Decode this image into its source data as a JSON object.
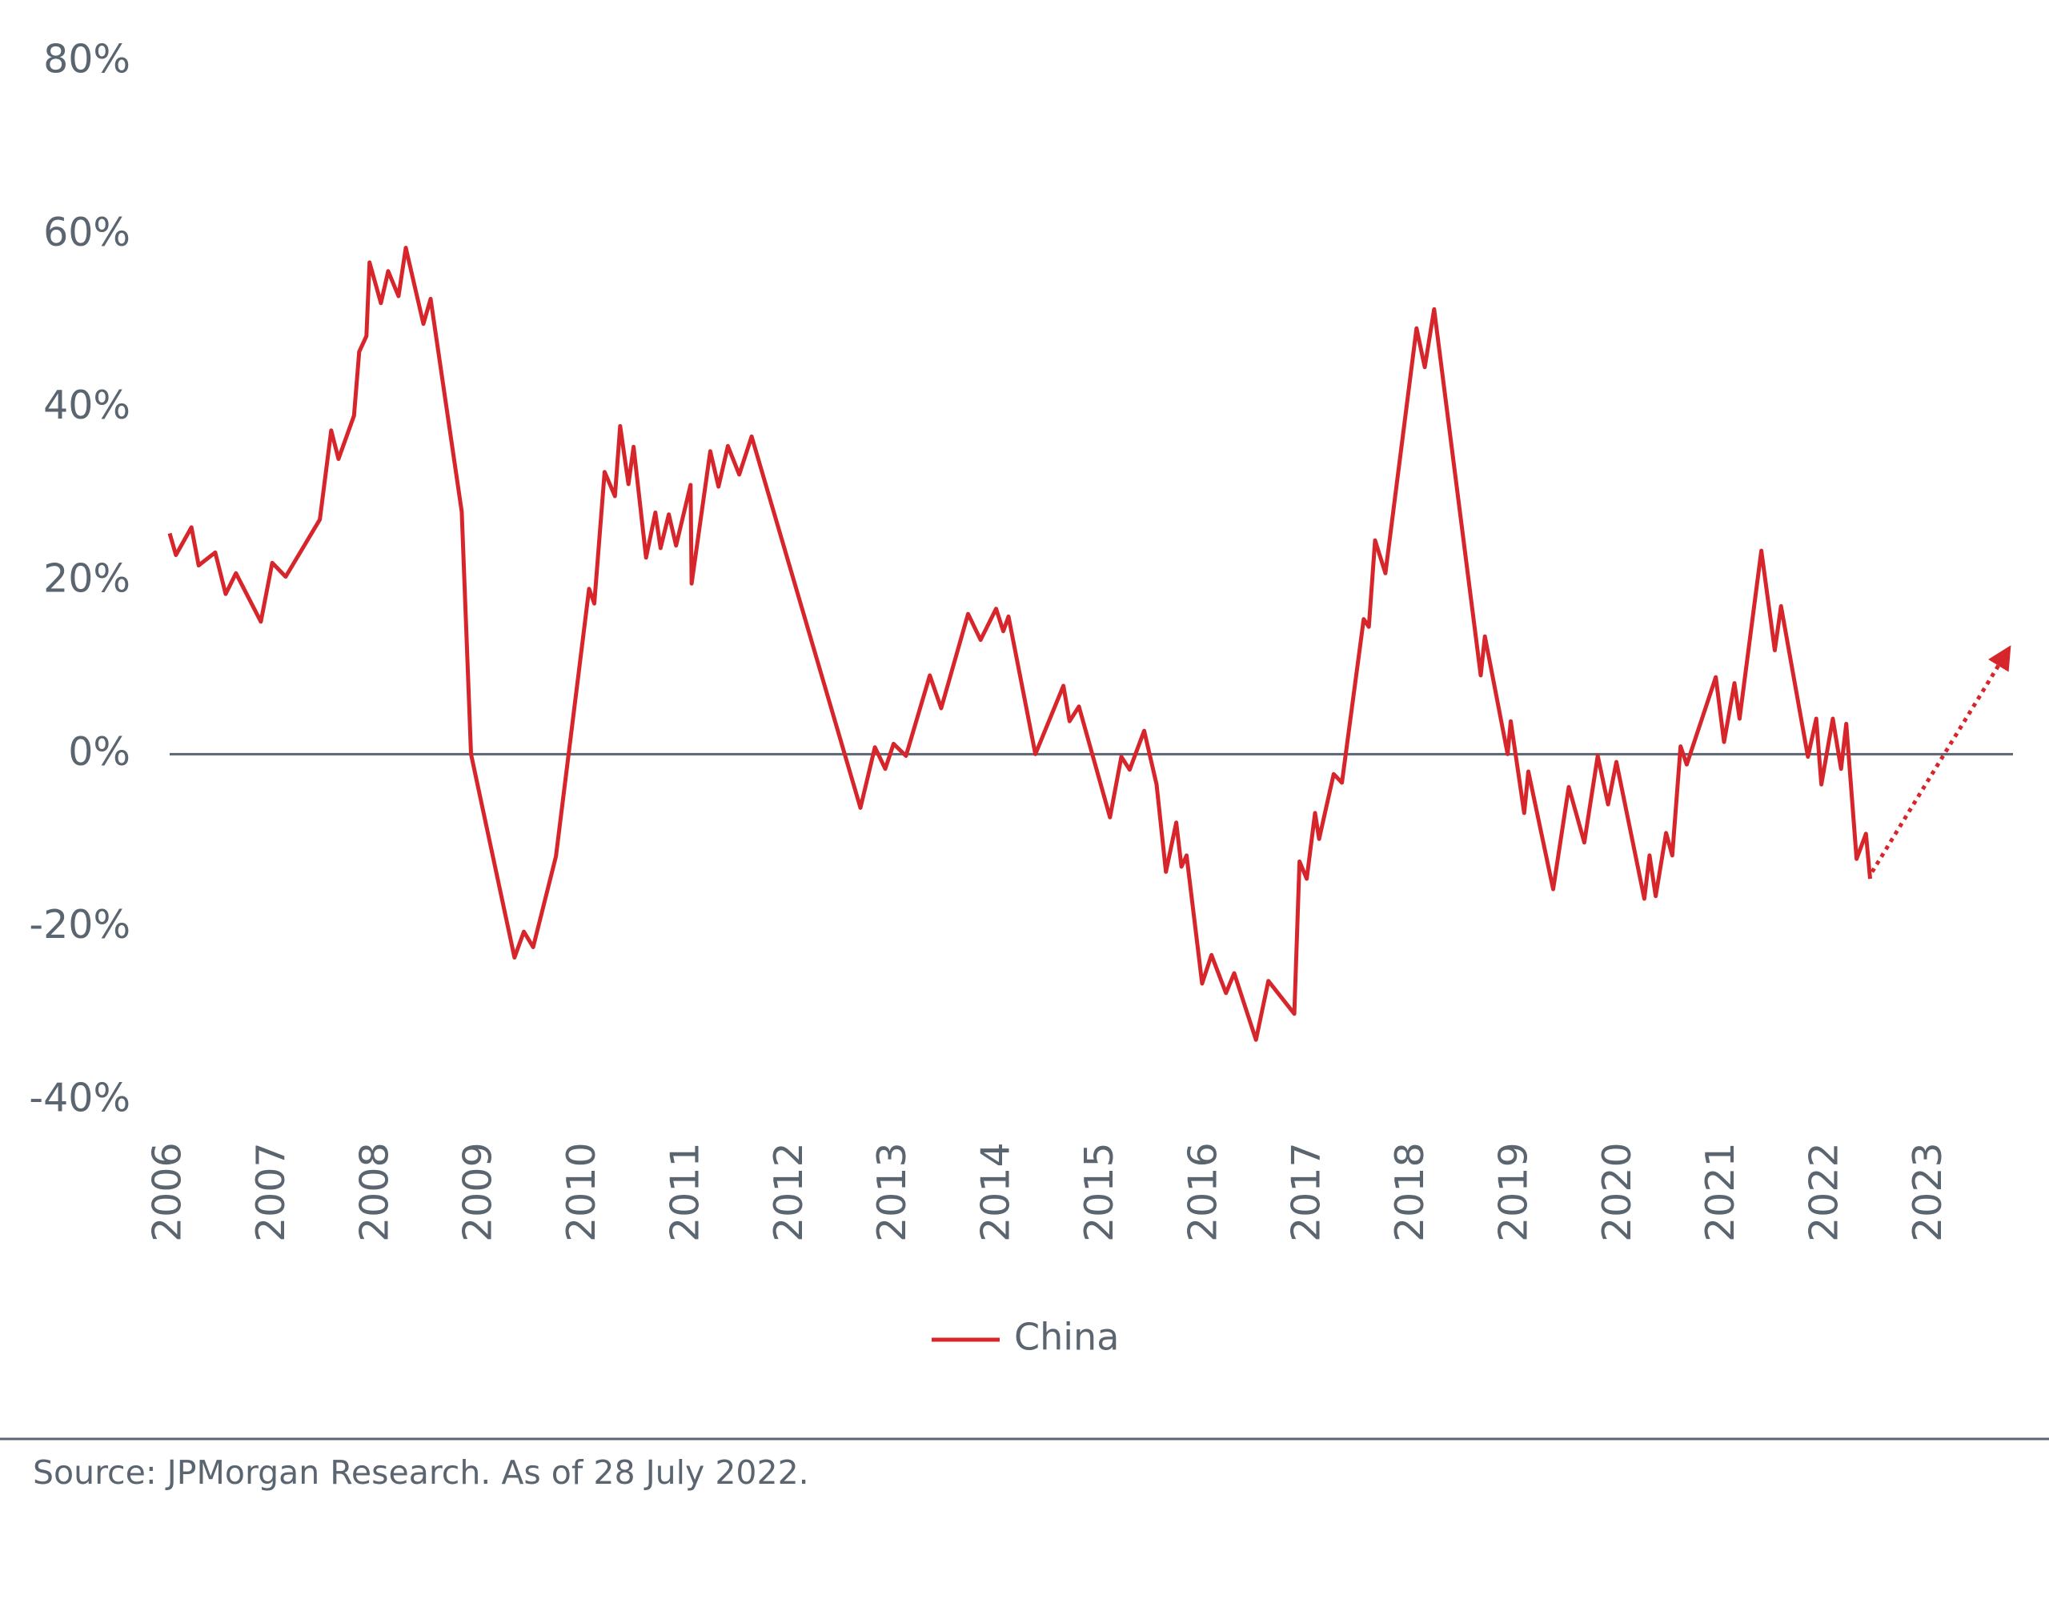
{
  "chart_data": {
    "type": "line",
    "series": [
      {
        "name": "China",
        "color": "#d7262b",
        "x": [
          2006.0,
          2006.06,
          2006.21,
          2006.28,
          2006.44,
          2006.54,
          2006.64,
          2006.88,
          2006.99,
          2007.12,
          2007.45,
          2007.56,
          2007.63,
          2007.78,
          2007.83,
          2007.9,
          2007.93,
          2008.04,
          2008.11,
          2008.21,
          2008.28,
          2008.45,
          2008.52,
          2008.82,
          2008.91,
          2009.33,
          2009.42,
          2009.51,
          2009.73,
          2010.05,
          2010.1,
          2010.2,
          2010.3,
          2010.35,
          2010.43,
          2010.48,
          2010.6,
          2010.69,
          2010.74,
          2010.82,
          2010.89,
          2011.03,
          2011.04,
          2011.22,
          2011.3,
          2011.39,
          2011.5,
          2011.62,
          2012.67,
          2012.81,
          2012.91,
          2012.99,
          2013.11,
          2013.34,
          2013.45,
          2013.71,
          2013.83,
          2013.98,
          2014.05,
          2014.1,
          2014.36,
          2014.63,
          2014.69,
          2014.78,
          2015.08,
          2015.19,
          2015.27,
          2015.41,
          2015.53,
          2015.62,
          2015.72,
          2015.77,
          2015.82,
          2015.97,
          2016.06,
          2016.2,
          2016.28,
          2016.49,
          2016.61,
          2016.86,
          2016.91,
          2016.98,
          2017.06,
          2017.1,
          2017.24,
          2017.32,
          2017.53,
          2017.58,
          2017.64,
          2017.74,
          2018.04,
          2018.12,
          2018.21,
          2018.66,
          2018.7,
          2018.92,
          2018.95,
          2019.08,
          2019.12,
          2019.36,
          2019.51,
          2019.66,
          2019.79,
          2019.89,
          2019.97,
          2020.24,
          2020.29,
          2020.35,
          2020.45,
          2020.51,
          2020.59,
          2020.65,
          2020.93,
          2021.01,
          2021.11,
          2021.16,
          2021.37,
          2021.5,
          2021.56,
          2021.82,
          2021.9,
          2021.95,
          2022.06,
          2022.14,
          2022.19,
          2022.29,
          2022.38,
          2022.42
        ],
        "values": [
          25.5,
          23,
          26.2,
          21.8,
          23.3,
          18.5,
          20.9,
          15.3,
          22.1,
          20.5,
          27.1,
          37.4,
          34.1,
          39.1,
          46.5,
          48.3,
          56.8,
          52.1,
          55.8,
          52.9,
          58.5,
          49.7,
          52.6,
          28,
          0,
          -23.5,
          -20.5,
          -22.3,
          -11.8,
          19.1,
          17.4,
          32.6,
          29.8,
          37.9,
          31.2,
          35.5,
          22.7,
          27.9,
          23.8,
          27.7,
          24.1,
          31.1,
          19.7,
          35,
          30.9,
          35.6,
          32.3,
          36.7,
          -6.2,
          0.8,
          -1.7,
          1.2,
          -0.2,
          9.1,
          5.3,
          16.2,
          13.2,
          16.8,
          14.2,
          15.9,
          0,
          7.9,
          3.8,
          5.5,
          -7.3,
          -0.3,
          -1.8,
          2.7,
          -3.5,
          -13.6,
          -7.9,
          -13,
          -11.7,
          -26.5,
          -23.2,
          -27.6,
          -25.3,
          -33,
          -26.2,
          -30,
          -12.4,
          -14.4,
          -6.8,
          -9.8,
          -2.3,
          -3.3,
          15.6,
          14.7,
          24.7,
          20.9,
          49.2,
          44.7,
          51.4,
          9.1,
          13.6,
          0,
          3.8,
          -6.8,
          -2,
          -15.6,
          -3.8,
          -10.2,
          -0.2,
          -5.8,
          -0.9,
          -16.7,
          -11.7,
          -16.4,
          -9.1,
          -11.7,
          0.9,
          -1.2,
          8.9,
          1.4,
          8.2,
          4.1,
          23.5,
          12,
          17.1,
          -0.3,
          4.1,
          -3.5,
          4.1,
          -1.7,
          3.5,
          -12.1,
          -9.2,
          -14.4
        ]
      }
    ],
    "forecast": {
      "x": [
        2022.44,
        2023.72
      ],
      "values": [
        -13.6,
        11.4
      ],
      "color": "#d7262b",
      "style": "dotted"
    },
    "xlim": [
      2006,
      2023.8
    ],
    "xticks": [
      2006,
      2007,
      2008,
      2009,
      2010,
      2011,
      2012,
      2013,
      2014,
      2015,
      2016,
      2017,
      2018,
      2019,
      2020,
      2021,
      2022,
      2023
    ],
    "ylim": [
      -40,
      80
    ],
    "yticks": [
      {
        "value": -40,
        "label": "-40%"
      },
      {
        "value": -20,
        "label": "-20%"
      },
      {
        "value": 0,
        "label": "0%"
      },
      {
        "value": 20,
        "label": "20%"
      },
      {
        "value": 40,
        "label": "40%"
      },
      {
        "value": 60,
        "label": "60%"
      },
      {
        "value": 80,
        "label": "80%"
      }
    ],
    "legend": "bottom",
    "source": "Source: JPMorgan Research. As of 28 July 2022."
  }
}
